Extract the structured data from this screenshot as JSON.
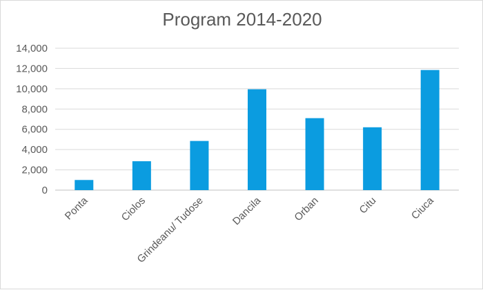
{
  "chart_data": {
    "type": "bar",
    "title": "Program 2014-2020",
    "categories": [
      "Ponta",
      "Ciolos",
      "Grindeanu/ Tudose",
      "Dancila",
      "Orban",
      "Citu",
      "Ciuca"
    ],
    "series": [
      {
        "values": [
          1000,
          2850,
          4850,
          9950,
          7100,
          6200,
          11850
        ]
      }
    ],
    "y_ticks": [
      "0",
      "2,000",
      "4,000",
      "6,000",
      "8,000",
      "10,000",
      "12,000",
      "14,000"
    ],
    "ylim": [
      0,
      14000
    ],
    "xlabel": "",
    "ylabel": "",
    "grid": true,
    "legend": "none",
    "bar_color": "#0b9ce0",
    "grid_color": "#d9d9d9",
    "axis_line_color": "#bfbfbf",
    "label_color": "#595959"
  }
}
